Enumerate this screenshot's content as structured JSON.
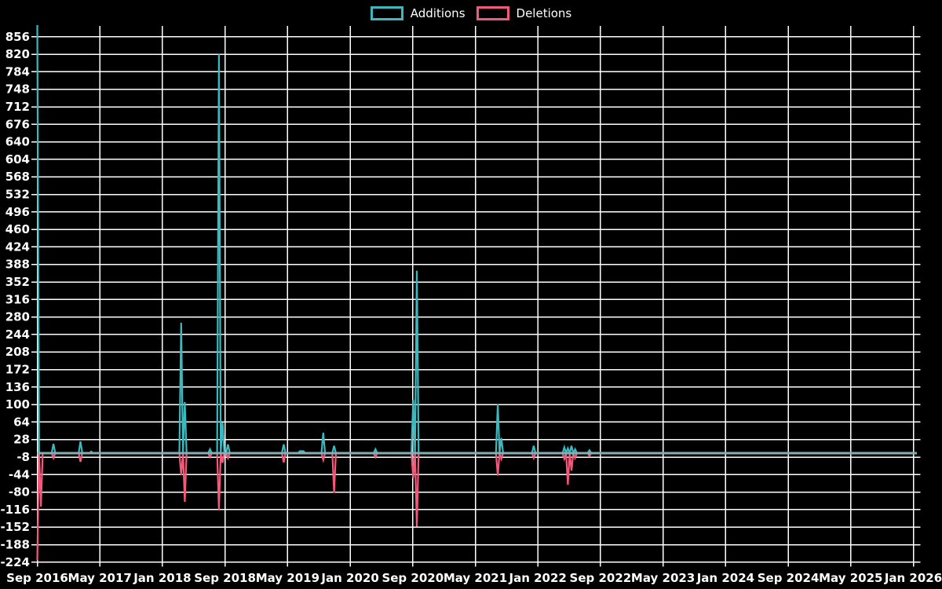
{
  "legend": {
    "additions_label": "Additions",
    "deletions_label": "Deletions"
  },
  "colors": {
    "additions": "#3BB9BE",
    "deletions": "#F4587A",
    "baseline": "#84ADB4",
    "grid": "#FFFFFF",
    "background": "#000000",
    "text": "#FFFFFF"
  },
  "chart_data": {
    "type": "line",
    "title": "",
    "xlabel": "",
    "ylabel": "",
    "legend_position": "top-center",
    "grid": true,
    "x_resolution": "weekly",
    "x_range": [
      "Sep 2016",
      "Jan 2026"
    ],
    "x_tick_labels": [
      "Sep 2016",
      "May 2017",
      "Jan 2018",
      "Sep 2018",
      "May 2019",
      "Jan 2020",
      "Sep 2020",
      "May 2021",
      "Jan 2022",
      "Sep 2022",
      "May 2023",
      "Jan 2024",
      "Sep 2024",
      "May 2025",
      "Jan 2026"
    ],
    "y_ticks": [
      856,
      820,
      784,
      748,
      712,
      676,
      640,
      604,
      568,
      532,
      496,
      460,
      424,
      388,
      352,
      316,
      280,
      244,
      208,
      172,
      136,
      100,
      64,
      28,
      -8,
      -44,
      -80,
      -116,
      -152,
      -188,
      -224
    ],
    "ylim_visible": [
      -224,
      880
    ],
    "n_points": 490,
    "default_value": 0,
    "notes": "Week index 0 = Sep 2016. All values are 0 except listed sparse points. The Sep 2016 additions spike is clipped by the top of the plot (~880+).",
    "series": [
      {
        "name": "Additions",
        "color": "#3BB9BE",
        "sparse_points": {
          "0": 880,
          "9": 19,
          "24": 24,
          "30": 3,
          "80": 268,
          "82": 105,
          "96": 8,
          "101": 820,
          "103": 63,
          "106": 18,
          "137": 18,
          "146": 4,
          "147": 4,
          "148": 4,
          "159": 42,
          "165": 15,
          "188": 8,
          "209": 110,
          "211": 375,
          "256": 100,
          "258": 31,
          "276": 15,
          "293": 12,
          "295": 10,
          "297": 15,
          "299": 8,
          "307": 6
        }
      },
      {
        "name": "Deletions",
        "color": "#F4587A",
        "sparse_points": {
          "0": -220,
          "2": -110,
          "9": -10,
          "24": -18,
          "80": -45,
          "82": -100,
          "96": -8,
          "101": -116,
          "103": -20,
          "106": -10,
          "137": -19,
          "159": -14,
          "165": -81,
          "188": -8,
          "209": -51,
          "211": -151,
          "256": -46,
          "258": -12,
          "276": -10,
          "293": -12,
          "295": -65,
          "297": -36,
          "299": -10,
          "307": -6
        }
      }
    ]
  }
}
